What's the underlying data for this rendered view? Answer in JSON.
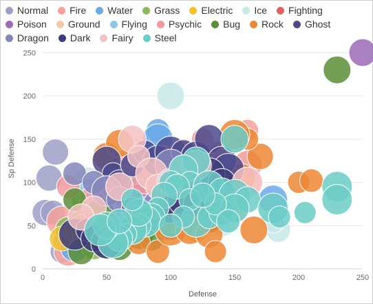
{
  "chart_data": {
    "type": "scatter",
    "title": "",
    "xlabel": "Defense",
    "ylabel": "Sp Defense",
    "xlim": [
      0,
      250
    ],
    "ylim": [
      0,
      255
    ],
    "xticks": [
      0,
      50,
      100,
      150,
      200,
      250
    ],
    "yticks": [
      0,
      50,
      100,
      150,
      200,
      250
    ],
    "grid": "horizontal",
    "legend_position": "top",
    "series": [
      {
        "name": "Normal",
        "color": "#9ea0c8",
        "points": [
          [
            10,
            135
          ],
          [
            5,
            105
          ],
          [
            2,
            65
          ],
          [
            8,
            65
          ],
          [
            15,
            20
          ],
          [
            30,
            50
          ],
          [
            45,
            55
          ],
          [
            60,
            75
          ],
          [
            20,
            30
          ],
          [
            55,
            40
          ],
          [
            65,
            60
          ],
          [
            80,
            75
          ],
          [
            50,
            35
          ],
          [
            40,
            45
          ],
          [
            70,
            95
          ],
          [
            90,
            105
          ]
        ]
      },
      {
        "name": "Fire",
        "color": "#f4a29a",
        "points": [
          [
            15,
            55
          ],
          [
            20,
            20
          ],
          [
            35,
            50
          ],
          [
            45,
            60
          ],
          [
            50,
            85
          ],
          [
            60,
            70
          ],
          [
            65,
            50
          ],
          [
            70,
            65
          ],
          [
            75,
            85
          ],
          [
            80,
            100
          ],
          [
            85,
            80
          ],
          [
            90,
            90
          ],
          [
            100,
            105
          ],
          [
            110,
            75
          ],
          [
            120,
            80
          ],
          [
            130,
            90
          ],
          [
            160,
            160
          ],
          [
            140,
            90
          ]
        ]
      },
      {
        "name": "Water",
        "color": "#6aa9e8",
        "points": [
          [
            30,
            30
          ],
          [
            45,
            50
          ],
          [
            55,
            60
          ],
          [
            60,
            70
          ],
          [
            65,
            80
          ],
          [
            70,
            95
          ],
          [
            80,
            120
          ],
          [
            90,
            160
          ],
          [
            95,
            130
          ],
          [
            100,
            110
          ],
          [
            110,
            100
          ],
          [
            120,
            75
          ],
          [
            130,
            90
          ],
          [
            180,
            80
          ],
          [
            90,
            150
          ],
          [
            25,
            25
          ]
        ]
      },
      {
        "name": "Grass",
        "color": "#8ab85c",
        "points": [
          [
            20,
            45
          ],
          [
            30,
            50
          ],
          [
            35,
            80
          ],
          [
            40,
            25
          ],
          [
            50,
            30
          ],
          [
            60,
            70
          ],
          [
            70,
            65
          ],
          [
            80,
            85
          ],
          [
            90,
            90
          ],
          [
            100,
            100
          ],
          [
            110,
            95
          ],
          [
            120,
            70
          ],
          [
            130,
            60
          ],
          [
            140,
            85
          ]
        ]
      },
      {
        "name": "Electric",
        "color": "#f2c12e",
        "points": [
          [
            15,
            35
          ],
          [
            30,
            45
          ],
          [
            40,
            40
          ],
          [
            55,
            55
          ],
          [
            70,
            75
          ],
          [
            85,
            90
          ],
          [
            95,
            60
          ],
          [
            120,
            45
          ]
        ]
      },
      {
        "name": "Ice",
        "color": "#c7e9e8",
        "points": [
          [
            100,
            200
          ],
          [
            35,
            100
          ],
          [
            55,
            70
          ],
          [
            80,
            85
          ],
          [
            100,
            100
          ],
          [
            120,
            90
          ],
          [
            150,
            90
          ],
          [
            184,
            45
          ],
          [
            180,
            55
          ],
          [
            140,
            55
          ]
        ]
      },
      {
        "name": "Fighting",
        "color": "#e06064",
        "points": [
          [
            40,
            35
          ],
          [
            55,
            50
          ],
          [
            70,
            60
          ],
          [
            85,
            65
          ],
          [
            95,
            80
          ],
          [
            110,
            95
          ],
          [
            125,
            70
          ]
        ]
      },
      {
        "name": "Poison",
        "color": "#9b6cb8",
        "points": [
          [
            250,
            250
          ],
          [
            40,
            45
          ],
          [
            55,
            55
          ],
          [
            65,
            70
          ],
          [
            75,
            85
          ],
          [
            90,
            95
          ],
          [
            105,
            110
          ],
          [
            120,
            120
          ],
          [
            130,
            130
          ]
        ]
      },
      {
        "name": "Ground",
        "color": "#f5c9a2",
        "points": [
          [
            40,
            40
          ],
          [
            55,
            45
          ],
          [
            70,
            60
          ],
          [
            85,
            65
          ],
          [
            100,
            85
          ],
          [
            115,
            70
          ],
          [
            130,
            75
          ],
          [
            150,
            65
          ],
          [
            160,
            100
          ],
          [
            125,
            55
          ]
        ]
      },
      {
        "name": "Flying",
        "color": "#8fc4eb",
        "points": [
          [
            35,
            90
          ],
          [
            50,
            55
          ],
          [
            65,
            60
          ],
          [
            80,
            70
          ],
          [
            95,
            65
          ],
          [
            110,
            100
          ],
          [
            125,
            95
          ],
          [
            140,
            85
          ]
        ]
      },
      {
        "name": "Psychic",
        "color": "#f19a9e",
        "points": [
          [
            20,
            95
          ],
          [
            40,
            80
          ],
          [
            55,
            100
          ],
          [
            65,
            120
          ],
          [
            80,
            105
          ],
          [
            95,
            130
          ],
          [
            110,
            130
          ],
          [
            125,
            150
          ],
          [
            150,
            150
          ],
          [
            160,
            120
          ],
          [
            135,
            135
          ]
        ]
      },
      {
        "name": "Bug",
        "color": "#5a8f36",
        "points": [
          [
            230,
            230
          ],
          [
            30,
            20
          ],
          [
            40,
            35
          ],
          [
            50,
            30
          ],
          [
            60,
            25
          ],
          [
            75,
            40
          ],
          [
            85,
            35
          ],
          [
            100,
            50
          ],
          [
            115,
            55
          ],
          [
            130,
            60
          ],
          [
            25,
            80
          ],
          [
            45,
            65
          ]
        ]
      },
      {
        "name": "Rock",
        "color": "#ec8735",
        "points": [
          [
            50,
            130
          ],
          [
            60,
            145
          ],
          [
            75,
            30
          ],
          [
            90,
            20
          ],
          [
            100,
            45
          ],
          [
            115,
            45
          ],
          [
            130,
            40
          ],
          [
            135,
            20
          ],
          [
            145,
            75
          ],
          [
            155,
            105
          ],
          [
            165,
            45
          ],
          [
            170,
            130
          ],
          [
            200,
            100
          ],
          [
            210,
            102
          ],
          [
            160,
            150
          ],
          [
            150,
            155
          ]
        ]
      },
      {
        "name": "Ghost",
        "color": "#4b4a8c",
        "points": [
          [
            50,
            125
          ],
          [
            55,
            110
          ],
          [
            60,
            100
          ],
          [
            70,
            120
          ],
          [
            80,
            135
          ],
          [
            90,
            125
          ],
          [
            100,
            135
          ],
          [
            110,
            135
          ],
          [
            120,
            130
          ],
          [
            130,
            150
          ],
          [
            140,
            125
          ],
          [
            145,
            115
          ]
        ]
      },
      {
        "name": "Dragon",
        "color": "#8486bb",
        "points": [
          [
            25,
            110
          ],
          [
            40,
            100
          ],
          [
            50,
            90
          ],
          [
            60,
            80
          ],
          [
            70,
            70
          ],
          [
            80,
            60
          ],
          [
            90,
            75
          ],
          [
            100,
            120
          ],
          [
            110,
            110
          ],
          [
            120,
            100
          ],
          [
            130,
            95
          ]
        ]
      },
      {
        "name": "Dark",
        "color": "#3e3c7a",
        "points": [
          [
            25,
            40
          ],
          [
            35,
            45
          ],
          [
            40,
            35
          ],
          [
            50,
            30
          ],
          [
            60,
            40
          ],
          [
            70,
            50
          ],
          [
            80,
            55
          ],
          [
            90,
            65
          ],
          [
            100,
            70
          ],
          [
            110,
            80
          ],
          [
            120,
            75
          ],
          [
            130,
            110
          ],
          [
            140,
            100
          ]
        ]
      },
      {
        "name": "Fairy",
        "color": "#f4c2c3",
        "points": [
          [
            70,
            150
          ],
          [
            75,
            130
          ],
          [
            85,
            110
          ],
          [
            90,
            95
          ],
          [
            100,
            100
          ],
          [
            110,
            115
          ],
          [
            120,
            120
          ],
          [
            60,
            95
          ],
          [
            40,
            70
          ],
          [
            30,
            60
          ],
          [
            160,
            100
          ]
        ]
      },
      {
        "name": "Steel",
        "color": "#6ccdc7",
        "points": [
          [
            150,
            150
          ],
          [
            120,
            125
          ],
          [
            110,
            115
          ],
          [
            115,
            100
          ],
          [
            130,
            95
          ],
          [
            140,
            90
          ],
          [
            150,
            85
          ],
          [
            160,
            80
          ],
          [
            180,
            70
          ],
          [
            185,
            60
          ],
          [
            205,
            65
          ],
          [
            230,
            95
          ],
          [
            230,
            80
          ],
          [
            100,
            100
          ],
          [
            105,
            95
          ],
          [
            95,
            85
          ],
          [
            90,
            70
          ],
          [
            85,
            60
          ],
          [
            80,
            55
          ],
          [
            75,
            50
          ],
          [
            70,
            45
          ],
          [
            65,
            40
          ],
          [
            60,
            35
          ],
          [
            55,
            30
          ],
          [
            50,
            50
          ],
          [
            45,
            45
          ],
          [
            120,
            55
          ],
          [
            130,
            60
          ],
          [
            140,
            65
          ],
          [
            150,
            70
          ],
          [
            135,
            75
          ],
          [
            115,
            80
          ],
          [
            125,
            85
          ],
          [
            145,
            55
          ],
          [
            110,
            60
          ],
          [
            100,
            50
          ],
          [
            75,
            65
          ],
          [
            60,
            55
          ],
          [
            70,
            80
          ]
        ]
      }
    ]
  }
}
